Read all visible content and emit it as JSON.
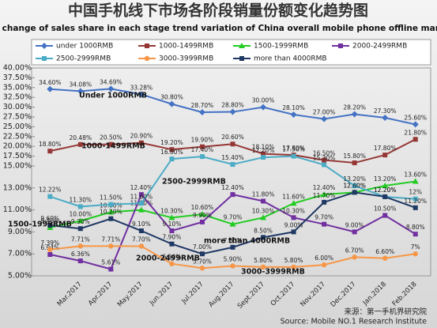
{
  "chart_data": {
    "type": "line",
    "title": "中国手机线下市场各阶段销量份额变化趋势图",
    "subtitle": "The change of sales share in each stage trend variation of China overall mobile phone offline market",
    "categories": [
      null,
      "Mar.2017",
      "Apr.2017",
      "May.2017",
      "Jun.2017",
      "Jul.2017",
      "Aug.2017",
      "Sept.2017",
      "Oct.2017",
      "Nov.2017",
      "Dec.2017",
      "Jan.2018",
      "Feb.2018"
    ],
    "series": [
      {
        "name": "under 1000RMB",
        "color": "#4472c4",
        "marker": "diamond",
        "values": [
          34.6,
          34.08,
          34.69,
          33.28,
          30.8,
          28.7,
          28.8,
          30.0,
          28.1,
          27.0,
          28.2,
          27.3,
          25.6
        ],
        "value_labels": [
          "34.60%",
          "34.08%",
          "34.69%",
          "33.28%",
          "30.80%",
          "28.70%",
          "28.80%",
          "30.00%",
          "28.10%",
          "27.00%",
          "28.20%",
          "27.30%",
          "25.60%"
        ]
      },
      {
        "name": "1000-1499RMB",
        "color": "#953735",
        "marker": "square",
        "values": [
          18.8,
          20.48,
          20.5,
          20.9,
          19.2,
          19.9,
          20.6,
          18.1,
          17.8,
          16.5,
          15.8,
          17.8,
          21.8
        ],
        "value_labels": [
          "18.80%",
          "20.48%",
          "20.50%",
          "20.90%",
          "19.20%",
          "19.90%",
          "20.60%",
          "18.10%",
          "17.80%",
          "16.50%",
          "15.80%",
          "17.80%",
          "21.80%"
        ]
      },
      {
        "name": "1500-1999RMB",
        "color": "#22cc22",
        "marker": "triangle",
        "values": [
          9.4,
          10.0,
          10.8,
          11.0,
          10.3,
          10.6,
          9.7,
          10.3,
          11.6,
          12.4,
          12.6,
          13.2,
          13.6
        ],
        "value_labels": [
          "9.40%",
          "10.00%",
          "10.80%",
          "11.00%",
          "10.30%",
          "10.60%",
          "9.70%",
          "10.30%",
          "11.60%",
          "12.40%",
          "12.60%",
          "13.20%",
          "13.60%"
        ]
      },
      {
        "name": "2000-2499RMB",
        "color": "#7030a0",
        "marker": "square",
        "values": [
          6.94,
          6.36,
          5.61,
          12.4,
          9.1,
          9.9,
          12.4,
          11.8,
          10.3,
          9.7,
          9.0,
          10.5,
          8.8
        ],
        "value_labels": [
          "6.94%",
          "6.36%",
          "5.61%",
          "12.40%",
          "9.10%",
          "9.90%",
          "12.40%",
          "11.80%",
          "10.30%",
          "9.70%",
          "9.00%",
          "10.50%",
          "8.80%"
        ]
      },
      {
        "name": "2500-2999RMB",
        "color": "#4bacc6",
        "marker": "square",
        "values": [
          12.22,
          11.3,
          11.5,
          11.6,
          16.8,
          17.4,
          15.4,
          17.2,
          17.5,
          15.3,
          13.2,
          12.2,
          12
        ],
        "value_labels": [
          "12.22%",
          "11.30%",
          "11.50%",
          "11.60%",
          "16.80%",
          "17.40%",
          "15.40%",
          "17.20%",
          "17.50%",
          "15.30%",
          "13.20%",
          "12.20%",
          "12%"
        ]
      },
      {
        "name": "3000-3999RMB",
        "color": "#f79646",
        "marker": "circle",
        "values": [
          7.39,
          7.71,
          7.71,
          7.7,
          6.1,
          5.7,
          5.9,
          5.8,
          5.8,
          6.0,
          6.7,
          6.6,
          7
        ],
        "value_labels": [
          "7.39%",
          "7.71%",
          "7.71%",
          "7.70%",
          "6.10%",
          "5.70%",
          "5.90%",
          "5.80%",
          "5.80%",
          "6.00%",
          "6.70%",
          "6.60%",
          "7%"
        ]
      },
      {
        "name": "more than 4000RMB",
        "color": "#1f3864",
        "marker": "square",
        "values": [
          9.6,
          9.3,
          10.2,
          9.1,
          7.9,
          7.0,
          7.6,
          8.5,
          9.0,
          11.7,
          12.6,
          12.2,
          11.2
        ],
        "value_labels": [
          "9.60%",
          "9.30%",
          "10.20%",
          "9.10%",
          "7.90%",
          "7.00%",
          "7.60%",
          "8.50%",
          "9.00%",
          "11.70%",
          "12.60%",
          "12.20%",
          "11.20%"
        ]
      }
    ],
    "ylim": [
      5,
      40
    ],
    "yticks": [
      {
        "value": 5,
        "label": "5.00%"
      },
      {
        "value": 7,
        "label": "7.00%"
      },
      {
        "value": 9,
        "label": "9.00%"
      },
      {
        "value": 11,
        "label": "11.00%"
      },
      {
        "value": 13,
        "label": "13.00%"
      },
      {
        "value": 15,
        "label": "15.00%"
      },
      {
        "value": 17.5,
        "label": "17.50%"
      },
      {
        "value": 20,
        "label": "20.00%"
      },
      {
        "value": 22.5,
        "label": "22.50%"
      },
      {
        "value": 25,
        "label": "25.00%"
      },
      {
        "value": 27.5,
        "label": "27.50%"
      },
      {
        "value": 30,
        "label": "30.00%"
      },
      {
        "value": 32.5,
        "label": "32.50%"
      },
      {
        "value": 35,
        "label": "35.00%"
      },
      {
        "value": 37.5,
        "label": "37.50%"
      },
      {
        "value": 40,
        "label": "40.00%"
      }
    ],
    "annotations": [
      "Under 1000RMB",
      "1000-1499RMB",
      "2500-2999RMB",
      "1500-1999RMB",
      "more than 4000RMB",
      "2000-2499RMB",
      "3000-3999RMB"
    ],
    "source": [
      "来源：第一手机界研究院",
      "Source: Mobile NO.1 Research Institute"
    ]
  }
}
